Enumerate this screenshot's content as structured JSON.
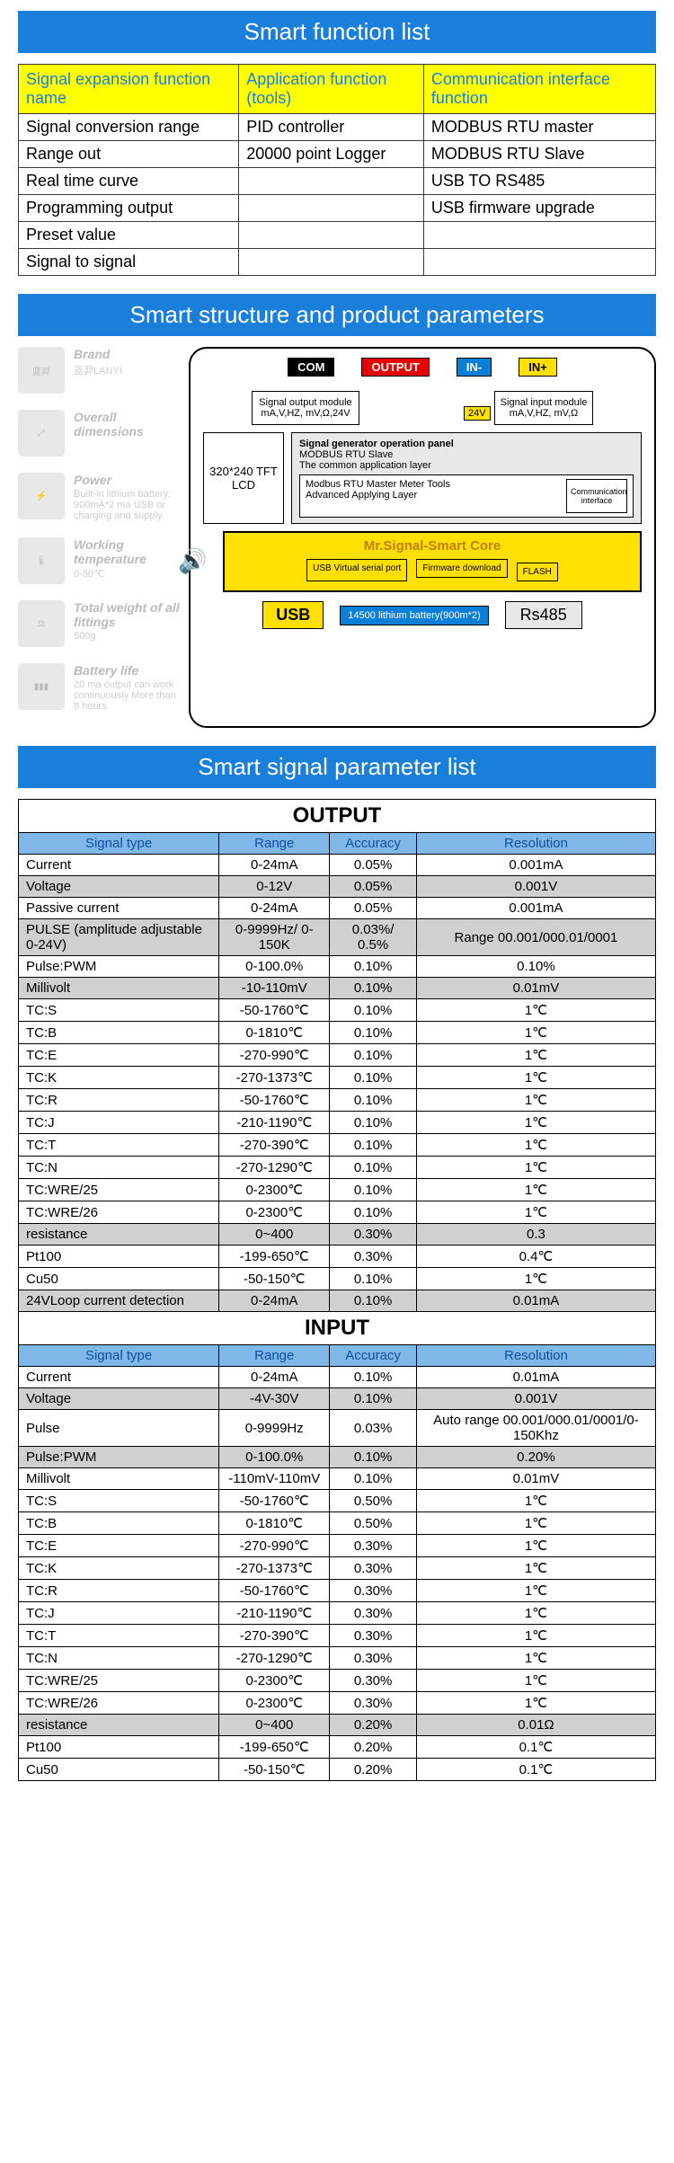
{
  "headers": {
    "func": "Smart function list",
    "struct": "Smart structure and product parameters",
    "signal": "Smart signal parameter list"
  },
  "func_table": {
    "cols": [
      "Signal expansion function name",
      "Application function (tools)",
      "Communication interface function"
    ],
    "rows": [
      [
        "Signal conversion range",
        "PID controller",
        "MODBUS RTU master"
      ],
      [
        "Range out",
        "20000 point Logger",
        "MODBUS RTU Slave"
      ],
      [
        "Real time curve",
        "",
        "USB TO RS485"
      ],
      [
        "Programming output",
        "",
        "USB firmware upgrade"
      ],
      [
        "Preset value",
        "",
        ""
      ],
      [
        "Signal to signal",
        "",
        ""
      ]
    ]
  },
  "specs": [
    {
      "label": "Brand",
      "value": "蓝羿LANYI",
      "icon": "蓝羿"
    },
    {
      "label": "Overall dimensions",
      "value": "",
      "icon": "⤢"
    },
    {
      "label": "Power",
      "value": "Built-in lithium battery: 900mA*2 ma USB or charging and supply",
      "icon": "⚡"
    },
    {
      "label": "Working temperature",
      "value": "0-50℃",
      "icon": "🌡"
    },
    {
      "label": "Total weight of all fittings",
      "value": "500g",
      "icon": "⚖"
    },
    {
      "label": "Battery life",
      "value": "20 ma output can work continuously More than 8 hours",
      "icon": "▮▮▮"
    }
  ],
  "diagram": {
    "ports": [
      "COM",
      "OUTPUT",
      "IN-",
      "IN+"
    ],
    "out_mod": "Signal output module mA,V,HZ, mV,Ω,24V",
    "in_mod": "Signal input module mA,V,HZ, mV,Ω",
    "v24": "24V",
    "lcd": "320*240 TFT LCD",
    "panel1_title": "Signal generator operation panel",
    "panel1_l1": "MODBUS RTU Slave",
    "panel1_l2": "The common application layer",
    "panel2_l1": "Modbus RTU Master Meter Tools",
    "panel2_l2": "Advanced Applying Layer",
    "comm": "Communication interface",
    "core": "Mr.Signal-Smart Core",
    "core_usb": "USB Virtual serial port",
    "core_fw": "Firmware download",
    "core_flash": "FLASH",
    "usb": "USB",
    "batt": "14500 lithium battery(900m*2)",
    "rs": "Rs485"
  },
  "output": {
    "title": "OUTPUT",
    "cols": [
      "Signal type",
      "Range",
      "Accuracy",
      "Resolution"
    ],
    "rows": [
      {
        "g": 0,
        "c": [
          "Current",
          "0-24mA",
          "0.05%",
          "0.001mA"
        ]
      },
      {
        "g": 1,
        "c": [
          "Voltage",
          "0-12V",
          "0.05%",
          "0.001V"
        ]
      },
      {
        "g": 0,
        "c": [
          "Passive current",
          "0-24mA",
          "0.05%",
          "0.001mA"
        ]
      },
      {
        "g": 1,
        "c": [
          "PULSE (amplitude adjustable 0-24V)",
          "0-9999Hz/ 0-150K",
          "0.03%/ 0.5%",
          "Range 00.001/000.01/0001"
        ]
      },
      {
        "g": 0,
        "c": [
          "Pulse:PWM",
          "0-100.0%",
          "0.10%",
          "0.10%"
        ]
      },
      {
        "g": 1,
        "c": [
          "Millivolt",
          "-10-110mV",
          "0.10%",
          "0.01mV"
        ]
      },
      {
        "g": 0,
        "c": [
          "TC:S",
          "-50-1760℃",
          "0.10%",
          "1℃"
        ]
      },
      {
        "g": 0,
        "c": [
          "TC:B",
          "0-1810℃",
          "0.10%",
          "1℃"
        ]
      },
      {
        "g": 0,
        "c": [
          "TC:E",
          "-270-990℃",
          "0.10%",
          "1℃"
        ]
      },
      {
        "g": 0,
        "c": [
          "TC:K",
          "-270-1373℃",
          "0.10%",
          "1℃"
        ]
      },
      {
        "g": 0,
        "c": [
          "TC:R",
          "-50-1760℃",
          "0.10%",
          "1℃"
        ]
      },
      {
        "g": 0,
        "c": [
          "TC:J",
          "-210-1190℃",
          "0.10%",
          "1℃"
        ]
      },
      {
        "g": 0,
        "c": [
          "TC:T",
          "-270-390℃",
          "0.10%",
          "1℃"
        ]
      },
      {
        "g": 0,
        "c": [
          "TC:N",
          "-270-1290℃",
          "0.10%",
          "1℃"
        ]
      },
      {
        "g": 0,
        "c": [
          "TC:WRE/25",
          "0-2300℃",
          "0.10%",
          "1℃"
        ]
      },
      {
        "g": 0,
        "c": [
          "TC:WRE/26",
          "0-2300℃",
          "0.10%",
          "1℃"
        ]
      },
      {
        "g": 1,
        "c": [
          "resistance",
          "0~400",
          "0.30%",
          "0.3"
        ]
      },
      {
        "g": 0,
        "c": [
          "Pt100",
          "-199-650℃",
          "0.30%",
          "0.4℃"
        ]
      },
      {
        "g": 0,
        "c": [
          "Cu50",
          "-50-150℃",
          "0.10%",
          "1℃"
        ]
      },
      {
        "g": 1,
        "c": [
          "24VLoop current detection",
          "0-24mA",
          "0.10%",
          "0.01mA"
        ]
      }
    ]
  },
  "input": {
    "title": "INPUT",
    "cols": [
      "Signal type",
      "Range",
      "Accuracy",
      "Resolution"
    ],
    "rows": [
      {
        "g": 0,
        "c": [
          "Current",
          "0-24mA",
          "0.10%",
          "0.01mA"
        ]
      },
      {
        "g": 1,
        "c": [
          "Voltage",
          "-4V-30V",
          "0.10%",
          "0.001V"
        ]
      },
      {
        "g": 0,
        "c": [
          "Pulse",
          "0-9999Hz",
          "0.03%",
          "Auto range 00.001/000.01/0001/0-150Khz"
        ]
      },
      {
        "g": 1,
        "c": [
          "Pulse:PWM",
          "0-100.0%",
          "0.10%",
          "0.20%"
        ]
      },
      {
        "g": 0,
        "c": [
          "Millivolt",
          "-110mV-110mV",
          "0.10%",
          "0.01mV"
        ]
      },
      {
        "g": 0,
        "c": [
          "TC:S",
          "-50-1760℃",
          "0.50%",
          "1℃"
        ]
      },
      {
        "g": 0,
        "c": [
          "TC:B",
          "0-1810℃",
          "0.50%",
          "1℃"
        ]
      },
      {
        "g": 0,
        "c": [
          "TC:E",
          "-270-990℃",
          "0.30%",
          "1℃"
        ]
      },
      {
        "g": 0,
        "c": [
          "TC:K",
          "-270-1373℃",
          "0.30%",
          "1℃"
        ]
      },
      {
        "g": 0,
        "c": [
          "TC:R",
          "-50-1760℃",
          "0.30%",
          "1℃"
        ]
      },
      {
        "g": 0,
        "c": [
          "TC:J",
          "-210-1190℃",
          "0.30%",
          "1℃"
        ]
      },
      {
        "g": 0,
        "c": [
          "TC:T",
          "-270-390℃",
          "0.30%",
          "1℃"
        ]
      },
      {
        "g": 0,
        "c": [
          "TC:N",
          "-270-1290℃",
          "0.30%",
          "1℃"
        ]
      },
      {
        "g": 0,
        "c": [
          "TC:WRE/25",
          "0-2300℃",
          "0.30%",
          "1℃"
        ]
      },
      {
        "g": 0,
        "c": [
          "TC:WRE/26",
          "0-2300℃",
          "0.30%",
          "1℃"
        ]
      },
      {
        "g": 1,
        "c": [
          "resistance",
          "0~400",
          "0.20%",
          "0.01Ω"
        ]
      },
      {
        "g": 0,
        "c": [
          "Pt100",
          "-199-650℃",
          "0.20%",
          "0.1℃"
        ]
      },
      {
        "g": 0,
        "c": [
          "Cu50",
          "-50-150℃",
          "0.20%",
          "0.1℃"
        ]
      }
    ]
  }
}
